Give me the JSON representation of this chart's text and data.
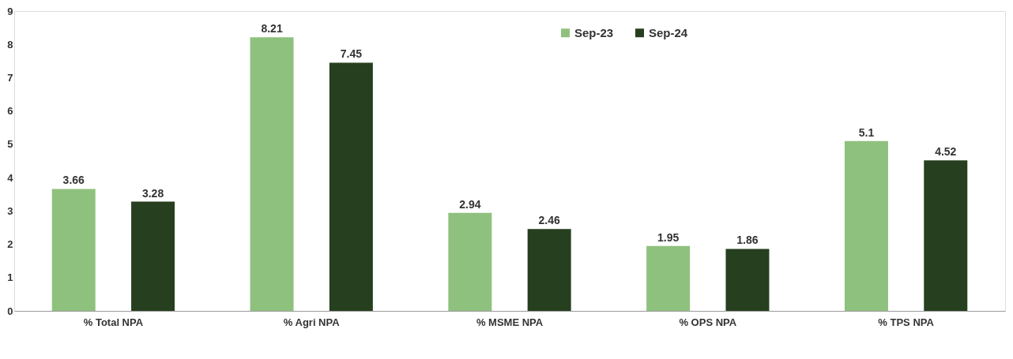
{
  "chart_data": {
    "type": "bar",
    "categories": [
      "% Total NPA",
      "% Agri NPA",
      "% MSME NPA",
      "% OPS NPA",
      "% TPS NPA"
    ],
    "series": [
      {
        "name": "Sep-23",
        "color": "#8fc17e",
        "values": [
          3.66,
          8.21,
          2.94,
          1.95,
          5.1
        ]
      },
      {
        "name": "Sep-24",
        "color": "#263f1f",
        "values": [
          3.28,
          7.45,
          2.46,
          1.86,
          4.52
        ]
      }
    ],
    "ylim": [
      0,
      9
    ],
    "yticks": [
      0,
      1,
      2,
      3,
      4,
      5,
      6,
      7,
      8,
      9
    ],
    "data_labels": true,
    "legend": "top right",
    "grid": false
  }
}
